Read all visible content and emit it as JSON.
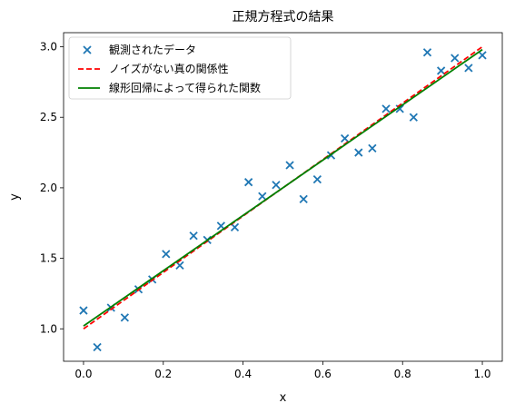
{
  "chart_data": {
    "type": "scatter",
    "title": "正規方程式の結果",
    "xlabel": "x",
    "ylabel": "y",
    "xlim": [
      -0.05,
      1.05
    ],
    "ylim": [
      0.77,
      3.1
    ],
    "xticks": [
      0.0,
      0.2,
      0.4,
      0.6,
      0.8,
      1.0
    ],
    "xtick_labels": [
      "0.0",
      "0.2",
      "0.4",
      "0.6",
      "0.8",
      "1.0"
    ],
    "yticks": [
      1.0,
      1.5,
      2.0,
      2.5,
      3.0
    ],
    "ytick_labels": [
      "1.0",
      "1.5",
      "2.0",
      "2.5",
      "3.0"
    ],
    "grid": false,
    "legend_position": "top-left",
    "series": [
      {
        "name": "観測されたデータ",
        "kind": "scatter",
        "marker": "x",
        "color": "#1f77b4",
        "x": [
          0.0,
          0.0345,
          0.069,
          0.1034,
          0.1379,
          0.1724,
          0.2069,
          0.2414,
          0.2759,
          0.3103,
          0.3448,
          0.3793,
          0.4138,
          0.4483,
          0.4828,
          0.5172,
          0.5517,
          0.5862,
          0.6207,
          0.6552,
          0.6897,
          0.7241,
          0.7586,
          0.7931,
          0.8276,
          0.8621,
          0.8966,
          0.931,
          0.9655,
          1.0
        ],
        "y": [
          1.13,
          0.87,
          1.15,
          1.08,
          1.28,
          1.35,
          1.53,
          1.45,
          1.66,
          1.63,
          1.73,
          1.72,
          2.04,
          1.94,
          2.02,
          2.16,
          1.92,
          2.06,
          2.23,
          2.35,
          2.25,
          2.28,
          2.56,
          2.56,
          2.5,
          2.96,
          2.83,
          2.92,
          2.85,
          2.94
        ]
      },
      {
        "name": "ノイズがない真の関係性",
        "kind": "line",
        "style": "dashed",
        "color": "#ff0000",
        "x": [
          0.0,
          1.0
        ],
        "y": [
          1.0,
          3.0
        ]
      },
      {
        "name": "線形回帰によって得られた関数",
        "kind": "line",
        "style": "solid",
        "color": "#008000",
        "x": [
          0.0,
          1.0
        ],
        "y": [
          1.02,
          2.98
        ]
      }
    ]
  }
}
